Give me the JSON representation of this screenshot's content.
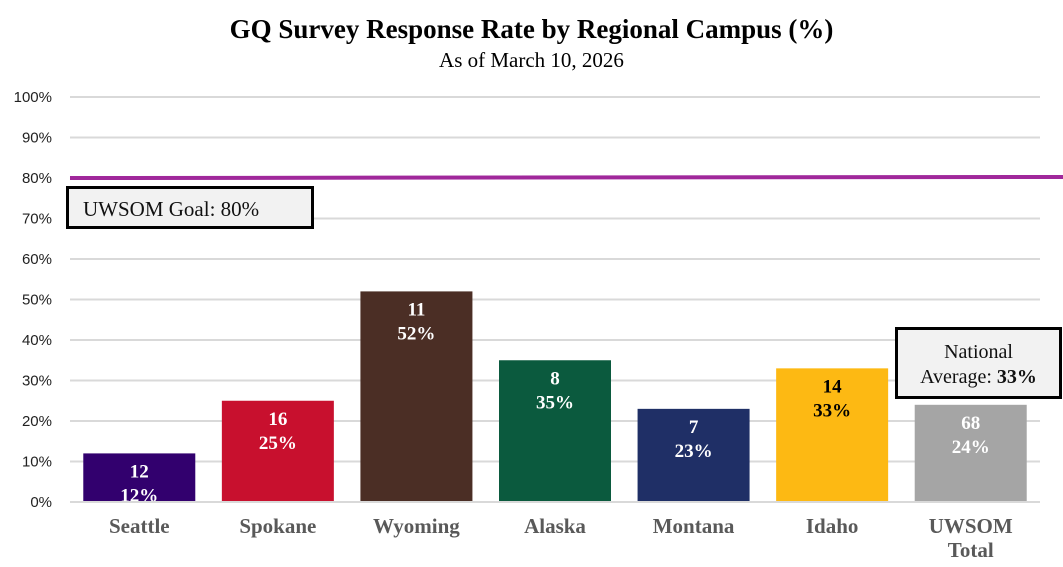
{
  "chart_data": {
    "type": "bar",
    "title": "GQ Survey Response Rate by Regional Campus (%)",
    "subtitle": "As of March 10, 2026",
    "categories": [
      "Seattle",
      "Spokane",
      "Wyoming",
      "Alaska",
      "Montana",
      "Idaho",
      "UWSOM Total"
    ],
    "values": [
      12,
      25,
      52,
      35,
      23,
      33,
      24
    ],
    "counts": [
      "12",
      "16",
      "11",
      "8",
      "7",
      "14",
      "68"
    ],
    "data_labels": [
      "12%",
      "25%",
      "52%",
      "35%",
      "23%",
      "33%",
      "24%"
    ],
    "colors": [
      "#32006e",
      "#c8102e",
      "#4b2e25",
      "#0b5a3e",
      "#1f2f66",
      "#fdb913",
      "#a5a5a5"
    ],
    "label_colors": [
      "#ffffff",
      "#ffffff",
      "#ffffff",
      "#ffffff",
      "#ffffff",
      "#000000",
      "#ffffff"
    ],
    "ylim": [
      0,
      100
    ],
    "yticks": [
      "0%",
      "10%",
      "20%",
      "30%",
      "40%",
      "50%",
      "60%",
      "70%",
      "80%",
      "90%",
      "100%"
    ],
    "grid": true,
    "goal_line": {
      "value": 80,
      "color": "#a0289b"
    },
    "annotations": {
      "goal": "UWSOM Goal: 80%",
      "national_prefix": "National",
      "national_label": "Average: ",
      "national_value": "33%"
    }
  }
}
